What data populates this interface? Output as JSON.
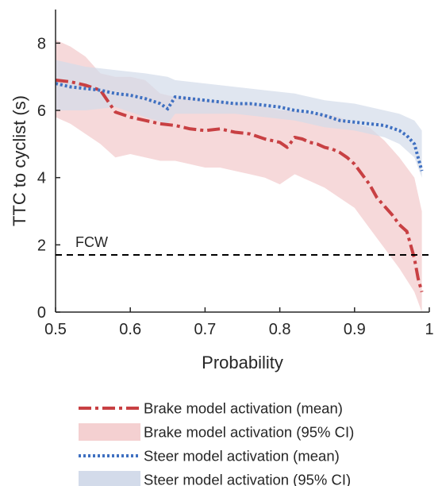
{
  "chart_data": {
    "type": "line",
    "xlabel": "Probability",
    "ylabel": "TTC to cyclist (s)",
    "xlim": [
      0.5,
      1
    ],
    "ylim": [
      0,
      9
    ],
    "xticks": [
      0.5,
      0.6,
      0.7,
      0.8,
      0.9,
      1
    ],
    "xtick_labels": [
      "0.5",
      "0.6",
      "0.7",
      "0.8",
      "0.9",
      "1"
    ],
    "yticks": [
      0,
      2,
      4,
      6,
      8
    ],
    "ytick_labels": [
      "0",
      "2",
      "4",
      "6",
      "8"
    ],
    "grid": false,
    "legend_position": "bottom",
    "annotations": [
      {
        "text": "FCW",
        "y": 1.7,
        "style": "dashed-horizontal-line",
        "color": "#000000"
      }
    ],
    "series": [
      {
        "name": "Brake model activation (mean)",
        "style": "dash-dot",
        "color": "#c84043",
        "x": [
          0.5,
          0.52,
          0.54,
          0.56,
          0.58,
          0.6,
          0.62,
          0.64,
          0.66,
          0.68,
          0.7,
          0.72,
          0.74,
          0.76,
          0.78,
          0.8,
          0.81,
          0.82,
          0.83,
          0.84,
          0.85,
          0.86,
          0.87,
          0.88,
          0.89,
          0.9,
          0.91,
          0.92,
          0.93,
          0.94,
          0.95,
          0.96,
          0.97,
          0.98,
          0.985,
          0.99
        ],
        "values": [
          6.9,
          6.85,
          6.75,
          6.6,
          5.95,
          5.8,
          5.7,
          5.6,
          5.55,
          5.45,
          5.4,
          5.45,
          5.35,
          5.3,
          5.15,
          5.05,
          4.9,
          5.2,
          5.15,
          5.05,
          5.0,
          4.9,
          4.85,
          4.75,
          4.6,
          4.4,
          4.1,
          3.8,
          3.4,
          3.15,
          2.9,
          2.6,
          2.4,
          1.6,
          1.0,
          0.6
        ]
      },
      {
        "name": "Brake model activation (95% CI)",
        "style": "band",
        "color": "#f4d0d1",
        "x": [
          0.5,
          0.52,
          0.54,
          0.56,
          0.58,
          0.6,
          0.62,
          0.64,
          0.66,
          0.68,
          0.7,
          0.72,
          0.74,
          0.76,
          0.78,
          0.8,
          0.82,
          0.84,
          0.86,
          0.88,
          0.9,
          0.92,
          0.94,
          0.96,
          0.98,
          0.99
        ],
        "lower": [
          5.8,
          5.6,
          5.3,
          5.0,
          4.6,
          4.7,
          4.6,
          4.5,
          4.5,
          4.4,
          4.3,
          4.3,
          4.2,
          4.1,
          4.0,
          3.8,
          4.1,
          3.9,
          3.7,
          3.4,
          3.1,
          2.5,
          1.9,
          1.3,
          0.6,
          0.0
        ],
        "upper": [
          8.1,
          7.9,
          7.6,
          7.1,
          7.0,
          7.0,
          6.9,
          6.5,
          6.4,
          6.4,
          6.3,
          6.3,
          6.2,
          6.2,
          6.1,
          6.0,
          6.0,
          5.9,
          5.9,
          5.8,
          5.6,
          5.5,
          5.1,
          4.6,
          4.0,
          3.0
        ]
      },
      {
        "name": "Steer model activation (mean)",
        "style": "dotted",
        "color": "#3f70c1",
        "x": [
          0.5,
          0.52,
          0.54,
          0.56,
          0.58,
          0.6,
          0.62,
          0.64,
          0.65,
          0.66,
          0.68,
          0.7,
          0.72,
          0.74,
          0.76,
          0.78,
          0.8,
          0.82,
          0.84,
          0.86,
          0.88,
          0.9,
          0.92,
          0.94,
          0.96,
          0.97,
          0.98,
          0.985,
          0.99
        ],
        "values": [
          6.8,
          6.7,
          6.65,
          6.6,
          6.5,
          6.45,
          6.35,
          6.2,
          6.05,
          6.4,
          6.35,
          6.3,
          6.25,
          6.2,
          6.2,
          6.15,
          6.1,
          6.0,
          5.95,
          5.85,
          5.7,
          5.65,
          5.6,
          5.55,
          5.4,
          5.25,
          5.0,
          4.6,
          4.2
        ]
      },
      {
        "name": "Steer model activation (95% CI)",
        "style": "band",
        "color": "#d3dbea",
        "x": [
          0.5,
          0.54,
          0.58,
          0.62,
          0.65,
          0.66,
          0.7,
          0.74,
          0.78,
          0.82,
          0.86,
          0.9,
          0.94,
          0.96,
          0.98,
          0.99
        ],
        "lower": [
          6.0,
          6.0,
          6.1,
          5.8,
          5.6,
          5.9,
          5.9,
          5.9,
          5.8,
          5.7,
          5.5,
          5.4,
          5.2,
          5.0,
          4.6,
          4.0
        ],
        "upper": [
          7.5,
          7.3,
          7.2,
          7.1,
          7.0,
          6.9,
          6.8,
          6.7,
          6.6,
          6.5,
          6.3,
          6.2,
          6.0,
          5.9,
          5.7,
          5.4
        ]
      }
    ]
  }
}
